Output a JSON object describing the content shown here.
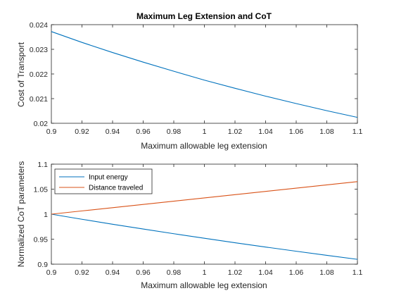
{
  "chart_data": [
    {
      "type": "line",
      "title": "Maximum Leg Extension and CoT",
      "xlabel": "Maximum allowable leg extension",
      "ylabel": "Cost of Transport",
      "xlim": [
        0.9,
        1.1
      ],
      "ylim": [
        0.02,
        0.024
      ],
      "xticks": [
        "0.9",
        "0.92",
        "0.94",
        "0.96",
        "0.98",
        "1",
        "1.02",
        "1.04",
        "1.06",
        "1.08",
        "1.1"
      ],
      "yticks": [
        "0.02",
        "0.021",
        "0.022",
        "0.023",
        "0.024"
      ],
      "grid": false,
      "series": [
        {
          "color": "#0072BD",
          "x": [
            0.9,
            0.92,
            0.94,
            0.96,
            0.98,
            1.0,
            1.02,
            1.04,
            1.06,
            1.08,
            1.1
          ],
          "y": [
            0.02372,
            0.02328,
            0.02287,
            0.02248,
            0.02211,
            0.02175,
            0.02142,
            0.0211,
            0.0208,
            0.02051,
            0.02024
          ]
        }
      ]
    },
    {
      "type": "line",
      "title": "",
      "xlabel": "Maximum allowable leg extension",
      "ylabel": "Normalized CoT parameters",
      "xlim": [
        0.9,
        1.1
      ],
      "ylim": [
        0.9,
        1.1
      ],
      "xticks": [
        "0.9",
        "0.92",
        "0.94",
        "0.96",
        "0.98",
        "1",
        "1.02",
        "1.04",
        "1.06",
        "1.08",
        "1.1"
      ],
      "yticks": [
        "0.9",
        "0.95",
        "1",
        "1.05",
        "1.1"
      ],
      "grid": false,
      "legend": "top-left",
      "series": [
        {
          "name": "Input energy",
          "color": "#0072BD",
          "x": [
            0.9,
            0.92,
            0.94,
            0.96,
            0.98,
            1.0,
            1.02,
            1.04,
            1.06,
            1.08,
            1.1
          ],
          "y": [
            1.0,
            0.9898,
            0.9799,
            0.9703,
            0.9609,
            0.9518,
            0.9429,
            0.9343,
            0.9259,
            0.9177,
            0.9097
          ]
        },
        {
          "name": "Distance traveled",
          "color": "#D95319",
          "x": [
            0.9,
            0.92,
            0.94,
            0.96,
            0.98,
            1.0,
            1.02,
            1.04,
            1.06,
            1.08,
            1.1
          ],
          "y": [
            1.0,
            1.0065,
            1.013,
            1.0195,
            1.026,
            1.0325,
            1.039,
            1.0455,
            1.052,
            1.0585,
            1.065
          ]
        }
      ]
    }
  ]
}
